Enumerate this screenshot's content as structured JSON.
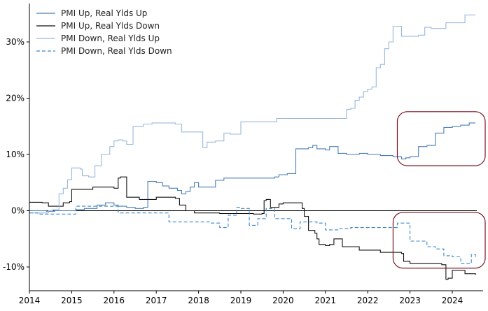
{
  "chart_data": {
    "type": "line",
    "title": "",
    "xlabel": "",
    "ylabel": "",
    "xlim": [
      2014.0,
      2024.6
    ],
    "ylim": [
      -14.5,
      37.0
    ],
    "x_ticks": [
      {
        "value": 2014,
        "label": "2014"
      },
      {
        "value": 2015,
        "label": "2015"
      },
      {
        "value": 2016,
        "label": "2016"
      },
      {
        "value": 2017,
        "label": "2017"
      },
      {
        "value": 2018,
        "label": "2018"
      },
      {
        "value": 2019,
        "label": "2019"
      },
      {
        "value": 2020,
        "label": "2020"
      },
      {
        "value": 2021,
        "label": "2021"
      },
      {
        "value": 2022,
        "label": "2022"
      },
      {
        "value": 2023,
        "label": "2023"
      },
      {
        "value": 2024,
        "label": "2024"
      }
    ],
    "y_ticks": [
      {
        "value": -10,
        "label": "-10%"
      },
      {
        "value": 0,
        "label": "0%"
      },
      {
        "value": 10,
        "label": "10%"
      },
      {
        "value": 20,
        "label": "20%"
      },
      {
        "value": 30,
        "label": "30%"
      }
    ],
    "grid": false,
    "zero_line": true,
    "legend_position": "top-left",
    "series": [
      {
        "name": "PMI Up, Real Ylds Up",
        "color": "#4a7fb5",
        "style": "solid",
        "x": [
          2014.0,
          2014.15,
          2014.4,
          2014.6,
          2014.75,
          2014.95,
          2015.1,
          2015.3,
          2015.6,
          2015.8,
          2016.0,
          2016.1,
          2016.3,
          2016.5,
          2016.7,
          2016.8,
          2017.0,
          2017.15,
          2017.3,
          2017.5,
          2017.6,
          2017.7,
          2017.8,
          2017.9,
          2018.0,
          2018.2,
          2018.4,
          2018.6,
          2018.9,
          2019.2,
          2019.5,
          2019.7,
          2019.8,
          2019.9,
          2020.1,
          2020.3,
          2020.6,
          2020.7,
          2020.8,
          2021.0,
          2021.1,
          2021.3,
          2021.5,
          2021.8,
          2022.0,
          2022.3,
          2022.6,
          2022.8,
          2022.9,
          2023.0,
          2023.2,
          2023.4,
          2023.6,
          2023.8,
          2024.0,
          2024.2,
          2024.4,
          2024.55
        ],
        "values": [
          0.0,
          0.0,
          -0.1,
          0.0,
          0.0,
          0.0,
          0.2,
          0.4,
          1.0,
          1.4,
          1.0,
          0.8,
          0.6,
          0.4,
          0.6,
          5.2,
          5.0,
          4.4,
          4.0,
          3.6,
          3.0,
          3.4,
          4.2,
          5.0,
          4.2,
          4.2,
          5.4,
          5.8,
          5.8,
          5.8,
          5.8,
          5.8,
          6.0,
          6.4,
          6.6,
          11.0,
          11.2,
          11.6,
          11.0,
          10.8,
          11.4,
          10.2,
          10.0,
          10.2,
          10.0,
          9.8,
          9.6,
          9.2,
          9.4,
          9.6,
          11.4,
          11.6,
          13.8,
          14.8,
          15.0,
          15.2,
          15.6,
          15.6
        ]
      },
      {
        "name": "PMI Up, Real Ylds Down",
        "color": "#111111",
        "style": "solid",
        "x": [
          2014.0,
          2014.3,
          2014.45,
          2014.6,
          2014.8,
          2014.95,
          2015.0,
          2015.5,
          2016.0,
          2016.1,
          2016.15,
          2016.3,
          2016.6,
          2016.9,
          2017.0,
          2017.3,
          2017.45,
          2017.55,
          2017.7,
          2017.9,
          2018.0,
          2018.5,
          2019.0,
          2019.3,
          2019.5,
          2019.55,
          2019.6,
          2019.7,
          2019.8,
          2019.9,
          2020.0,
          2020.3,
          2020.45,
          2020.5,
          2020.6,
          2020.75,
          2020.8,
          2020.85,
          2021.0,
          2021.1,
          2021.2,
          2021.4,
          2021.6,
          2021.8,
          2022.0,
          2022.3,
          2022.6,
          2022.8,
          2022.85,
          2023.0,
          2023.5,
          2023.75,
          2023.85,
          2023.9,
          2024.0,
          2024.3,
          2024.55
        ],
        "values": [
          1.5,
          1.4,
          0.8,
          0.8,
          1.4,
          1.6,
          3.8,
          4.2,
          4.0,
          5.8,
          6.0,
          2.4,
          2.0,
          2.0,
          2.4,
          2.4,
          2.2,
          1.0,
          0.0,
          -0.4,
          -0.4,
          -0.5,
          -0.5,
          -0.6,
          -0.5,
          1.8,
          2.0,
          0.6,
          0.6,
          1.2,
          1.4,
          1.4,
          0.4,
          -1.0,
          -3.5,
          -4.0,
          -5.0,
          -6.0,
          -6.2,
          -6.0,
          -5.0,
          -6.4,
          -6.4,
          -7.0,
          -7.0,
          -7.4,
          -7.4,
          -7.6,
          -9.0,
          -9.4,
          -9.4,
          -9.6,
          -12.2,
          -12.0,
          -10.6,
          -11.2,
          -11.4
        ]
      },
      {
        "name": "PMI Down, Real Ylds Up",
        "color": "#9ab8da",
        "style": "solid",
        "x": [
          2014.0,
          2014.3,
          2014.45,
          2014.55,
          2014.7,
          2014.8,
          2014.9,
          2015.0,
          2015.1,
          2015.2,
          2015.25,
          2015.4,
          2015.55,
          2015.7,
          2015.8,
          2015.9,
          2016.0,
          2016.1,
          2016.2,
          2016.3,
          2016.45,
          2016.7,
          2016.9,
          2017.0,
          2017.1,
          2017.3,
          2017.45,
          2017.6,
          2017.9,
          2018.0,
          2018.1,
          2018.2,
          2018.4,
          2018.6,
          2018.75,
          2018.9,
          2019.0,
          2019.2,
          2019.5,
          2019.7,
          2019.85,
          2020.0,
          2020.3,
          2020.6,
          2020.8,
          2021.0,
          2021.2,
          2021.35,
          2021.5,
          2021.6,
          2021.7,
          2021.8,
          2021.9,
          2022.0,
          2022.1,
          2022.2,
          2022.3,
          2022.4,
          2022.5,
          2022.6,
          2022.7,
          2022.8,
          2022.9,
          2023.0,
          2023.2,
          2023.35,
          2023.5,
          2023.7,
          2023.85,
          2024.0,
          2024.2,
          2024.3,
          2024.55
        ],
        "values": [
          -0.4,
          -0.4,
          0.0,
          0.2,
          3.0,
          4.0,
          5.5,
          7.6,
          7.6,
          7.4,
          6.2,
          6.0,
          8.0,
          10.0,
          10.0,
          11.4,
          12.4,
          12.6,
          12.4,
          11.8,
          15.0,
          15.4,
          15.6,
          15.6,
          15.6,
          15.6,
          15.4,
          14.0,
          14.0,
          14.0,
          11.2,
          12.2,
          12.4,
          13.8,
          13.6,
          13.6,
          15.8,
          15.8,
          15.8,
          15.8,
          16.4,
          16.4,
          16.4,
          16.4,
          16.4,
          16.4,
          16.4,
          16.4,
          18.0,
          18.2,
          19.6,
          20.2,
          21.2,
          21.6,
          22.0,
          25.4,
          26.0,
          28.8,
          30.0,
          32.8,
          32.8,
          31.0,
          31.0,
          31.0,
          31.2,
          32.6,
          32.4,
          32.4,
          33.4,
          33.4,
          33.4,
          34.8,
          34.8
        ]
      },
      {
        "name": "PMI Down, Real Ylds Down",
        "color": "#3a86c8",
        "style": "dashed",
        "x": [
          2014.0,
          2014.2,
          2014.5,
          2014.8,
          2015.0,
          2015.1,
          2015.3,
          2015.6,
          2016.0,
          2016.1,
          2016.3,
          2016.6,
          2016.9,
          2017.0,
          2017.3,
          2017.6,
          2017.9,
          2018.2,
          2018.3,
          2018.5,
          2018.7,
          2018.9,
          2019.0,
          2019.2,
          2019.4,
          2019.6,
          2019.8,
          2019.9,
          2020.0,
          2020.2,
          2020.4,
          2020.6,
          2020.8,
          2020.9,
          2021.0,
          2021.3,
          2021.6,
          2021.9,
          2022.2,
          2022.5,
          2022.7,
          2022.8,
          2023.0,
          2023.2,
          2023.4,
          2023.6,
          2023.8,
          2024.0,
          2024.2,
          2024.35,
          2024.45,
          2024.55
        ],
        "values": [
          -0.4,
          -0.6,
          -0.6,
          -0.6,
          -0.6,
          0.8,
          0.8,
          0.8,
          0.8,
          -0.4,
          -0.4,
          -0.4,
          -0.4,
          -0.4,
          -2.0,
          -2.0,
          -2.0,
          -2.0,
          -2.2,
          -3.0,
          -0.8,
          0.6,
          0.4,
          -2.6,
          -1.4,
          0.4,
          -1.4,
          -1.4,
          -1.4,
          -3.2,
          -2.0,
          -2.0,
          -2.2,
          -2.2,
          -3.4,
          -3.2,
          -3.0,
          -3.0,
          -3.0,
          -3.0,
          -2.2,
          -2.2,
          -5.4,
          -5.4,
          -6.4,
          -6.8,
          -8.0,
          -8.2,
          -9.4,
          -9.4,
          -7.8,
          -8.4
        ]
      }
    ],
    "annotations": [
      {
        "type": "rounded-rectangle",
        "color": "#7a1020",
        "x0": 2022.7,
        "x1": 2024.8,
        "y0": 8.0,
        "y1": 17.6
      },
      {
        "type": "rounded-rectangle",
        "color": "#7a1020",
        "x0": 2022.6,
        "x1": 2024.8,
        "y0": -10.2,
        "y1": -0.3
      }
    ]
  }
}
